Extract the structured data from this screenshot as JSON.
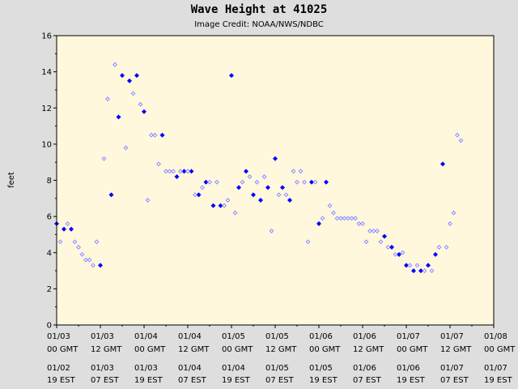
{
  "chart_data": {
    "type": "scatter",
    "title": "Wave Height at 41025",
    "subtitle": "Image Credit: NOAA/NWS/NDBC",
    "ylabel": "feet",
    "ylim": [
      0,
      16
    ],
    "yticks": [
      0,
      2,
      4,
      6,
      8,
      10,
      12,
      14,
      16
    ],
    "xlim_hours": [
      0,
      120
    ],
    "xticks": [
      {
        "hour": 0,
        "gmt": [
          "01/03",
          "00 GMT"
        ],
        "local": [
          "01/02",
          "19 EST"
        ]
      },
      {
        "hour": 12,
        "gmt": [
          "01/03",
          "12 GMT"
        ],
        "local": [
          "01/03",
          "07 EST"
        ]
      },
      {
        "hour": 24,
        "gmt": [
          "01/04",
          "00 GMT"
        ],
        "local": [
          "01/03",
          "19 EST"
        ]
      },
      {
        "hour": 36,
        "gmt": [
          "01/04",
          "12 GMT"
        ],
        "local": [
          "01/04",
          "07 EST"
        ]
      },
      {
        "hour": 48,
        "gmt": [
          "01/05",
          "00 GMT"
        ],
        "local": [
          "01/04",
          "19 EST"
        ]
      },
      {
        "hour": 60,
        "gmt": [
          "01/05",
          "12 GMT"
        ],
        "local": [
          "01/05",
          "07 EST"
        ]
      },
      {
        "hour": 72,
        "gmt": [
          "01/06",
          "00 GMT"
        ],
        "local": [
          "01/05",
          "19 EST"
        ]
      },
      {
        "hour": 84,
        "gmt": [
          "01/06",
          "12 GMT"
        ],
        "local": [
          "01/06",
          "07 EST"
        ]
      },
      {
        "hour": 96,
        "gmt": [
          "01/07",
          "00 GMT"
        ],
        "local": [
          "01/06",
          "19 EST"
        ]
      },
      {
        "hour": 108,
        "gmt": [
          "01/07",
          "12 GMT"
        ],
        "local": [
          "01/07",
          "07 EST"
        ]
      },
      {
        "hour": 120,
        "gmt": [
          "01/08",
          "00 GMT"
        ],
        "local": [
          "01/07",
          "19 EST"
        ]
      }
    ],
    "colors": {
      "plot_bg": "#fff8dc",
      "hourly": "#0000ff",
      "half_hourly": "#8888ff",
      "frame": "#000000"
    },
    "series": [
      {
        "role": "hourly",
        "x": [
          0,
          2,
          4,
          12,
          15,
          17,
          18,
          20,
          22,
          24,
          29,
          33,
          35,
          37,
          39,
          41,
          43,
          45,
          48,
          50,
          52,
          54,
          56,
          58,
          60,
          62,
          64,
          70,
          72,
          74,
          90,
          92,
          94,
          96,
          98,
          100,
          102,
          104,
          106
        ],
        "y": [
          5.6,
          5.3,
          5.3,
          3.3,
          7.2,
          11.5,
          13.8,
          13.5,
          13.8,
          11.8,
          10.5,
          8.2,
          8.5,
          8.5,
          7.2,
          7.9,
          6.6,
          6.6,
          13.8,
          7.6,
          8.5,
          7.2,
          6.9,
          7.6,
          9.2,
          7.6,
          6.9,
          7.9,
          5.6,
          7.9,
          4.9,
          4.3,
          3.9,
          3.3,
          3.0,
          3.0,
          3.3,
          3.9,
          8.9
        ]
      },
      {
        "role": "half_hourly",
        "x": [
          1,
          3,
          5,
          6,
          7,
          8,
          9,
          10,
          11,
          13,
          14,
          16,
          19,
          21,
          23,
          25,
          26,
          27,
          28,
          30,
          31,
          32,
          34,
          36,
          38,
          40,
          42,
          44,
          46,
          47,
          49,
          51,
          53,
          55,
          57,
          59,
          61,
          63,
          65,
          66,
          67,
          68,
          69,
          71,
          73,
          75,
          76,
          77,
          78,
          79,
          80,
          81,
          82,
          83,
          84,
          85,
          86,
          87,
          88,
          89,
          91,
          93,
          95,
          97,
          99,
          101,
          103,
          105,
          107,
          108,
          109,
          110,
          111
        ],
        "y": [
          4.6,
          5.6,
          4.6,
          4.3,
          3.9,
          3.6,
          3.6,
          3.3,
          4.6,
          9.2,
          12.5,
          14.4,
          9.8,
          12.8,
          12.2,
          6.9,
          10.5,
          10.5,
          8.9,
          8.5,
          8.5,
          8.5,
          8.5,
          8.5,
          7.2,
          7.6,
          7.9,
          7.9,
          6.6,
          6.9,
          6.2,
          7.9,
          8.2,
          7.9,
          8.2,
          5.2,
          7.2,
          7.2,
          8.5,
          7.9,
          8.5,
          7.9,
          4.6,
          7.9,
          5.9,
          6.6,
          6.2,
          5.9,
          5.9,
          5.9,
          5.9,
          5.9,
          5.9,
          5.6,
          5.6,
          4.6,
          5.2,
          5.2,
          5.2,
          4.6,
          4.3,
          3.9,
          4.0,
          3.3,
          3.3,
          3.0,
          3.0,
          4.3,
          4.3,
          5.6,
          6.2,
          10.5,
          10.2
        ]
      }
    ]
  }
}
